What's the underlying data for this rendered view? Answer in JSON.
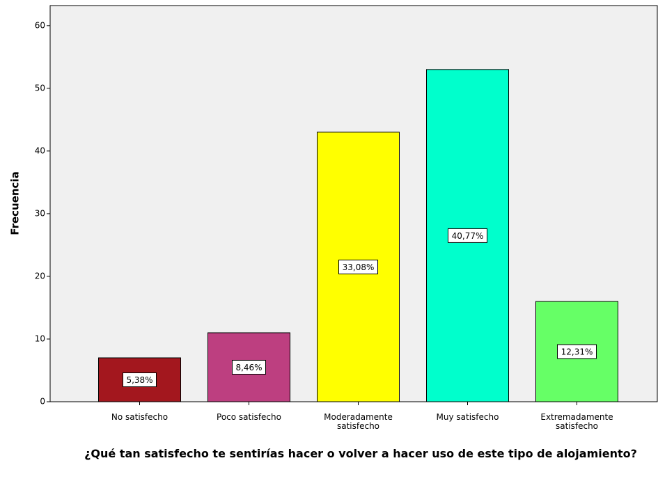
{
  "chart_data": {
    "type": "bar",
    "x_label": "¿Qué tan satisfecho te sentirías hacer o volver a hacer uso de este tipo de alojamiento?",
    "y_label": "Frecuencia",
    "categories": [
      "No satisfecho",
      "Poco satisfecho",
      "Moderadamente satisfecho",
      "Muy satisfecho",
      "Extremadamente satisfecho"
    ],
    "values": [
      7,
      11,
      43,
      53,
      16
    ],
    "bar_labels": [
      "5,38%",
      "8,46%",
      "33,08%",
      "40,77%",
      "12,31%"
    ],
    "colors": [
      "#a3171e",
      "#bd3f80",
      "#ffff00",
      "#00ffcc",
      "#66ff66"
    ],
    "ylim": [
      0,
      63.2
    ],
    "yticks": [
      0,
      10,
      20,
      30,
      40,
      50,
      60
    ],
    "grid": false
  }
}
